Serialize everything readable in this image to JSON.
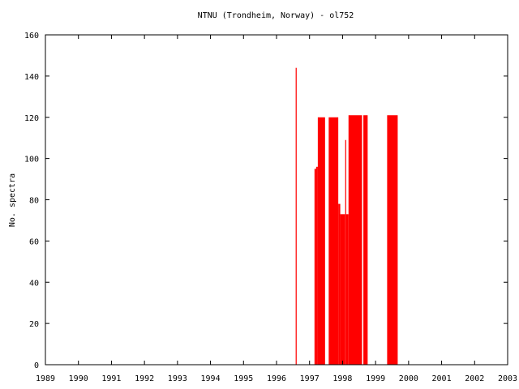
{
  "chart_data": {
    "type": "bar",
    "title": "NTNU (Trondheim, Norway) - ol752",
    "xlabel": "",
    "ylabel": "No. spectra",
    "xlim": [
      1989,
      2003
    ],
    "ylim": [
      0,
      160
    ],
    "x_ticks": [
      1989,
      1990,
      1991,
      1992,
      1993,
      1994,
      1995,
      1996,
      1997,
      1998,
      1999,
      2000,
      2001,
      2002,
      2003
    ],
    "y_ticks": [
      0,
      20,
      40,
      60,
      80,
      100,
      120,
      140,
      160
    ],
    "grid": false,
    "bar_color": "#ff0000",
    "bars": [
      {
        "start": 1996.58,
        "end": 1996.61,
        "value": 144
      },
      {
        "start": 1997.15,
        "end": 1997.2,
        "value": 95
      },
      {
        "start": 1997.2,
        "end": 1997.25,
        "value": 96
      },
      {
        "start": 1997.25,
        "end": 1997.47,
        "value": 120
      },
      {
        "start": 1997.58,
        "end": 1997.87,
        "value": 120
      },
      {
        "start": 1997.87,
        "end": 1997.93,
        "value": 78
      },
      {
        "start": 1997.93,
        "end": 1998.08,
        "value": 73
      },
      {
        "start": 1998.08,
        "end": 1998.11,
        "value": 109
      },
      {
        "start": 1998.11,
        "end": 1998.18,
        "value": 73
      },
      {
        "start": 1998.18,
        "end": 1998.59,
        "value": 121
      },
      {
        "start": 1998.63,
        "end": 1998.76,
        "value": 121
      },
      {
        "start": 1999.35,
        "end": 1999.67,
        "value": 121
      }
    ]
  }
}
